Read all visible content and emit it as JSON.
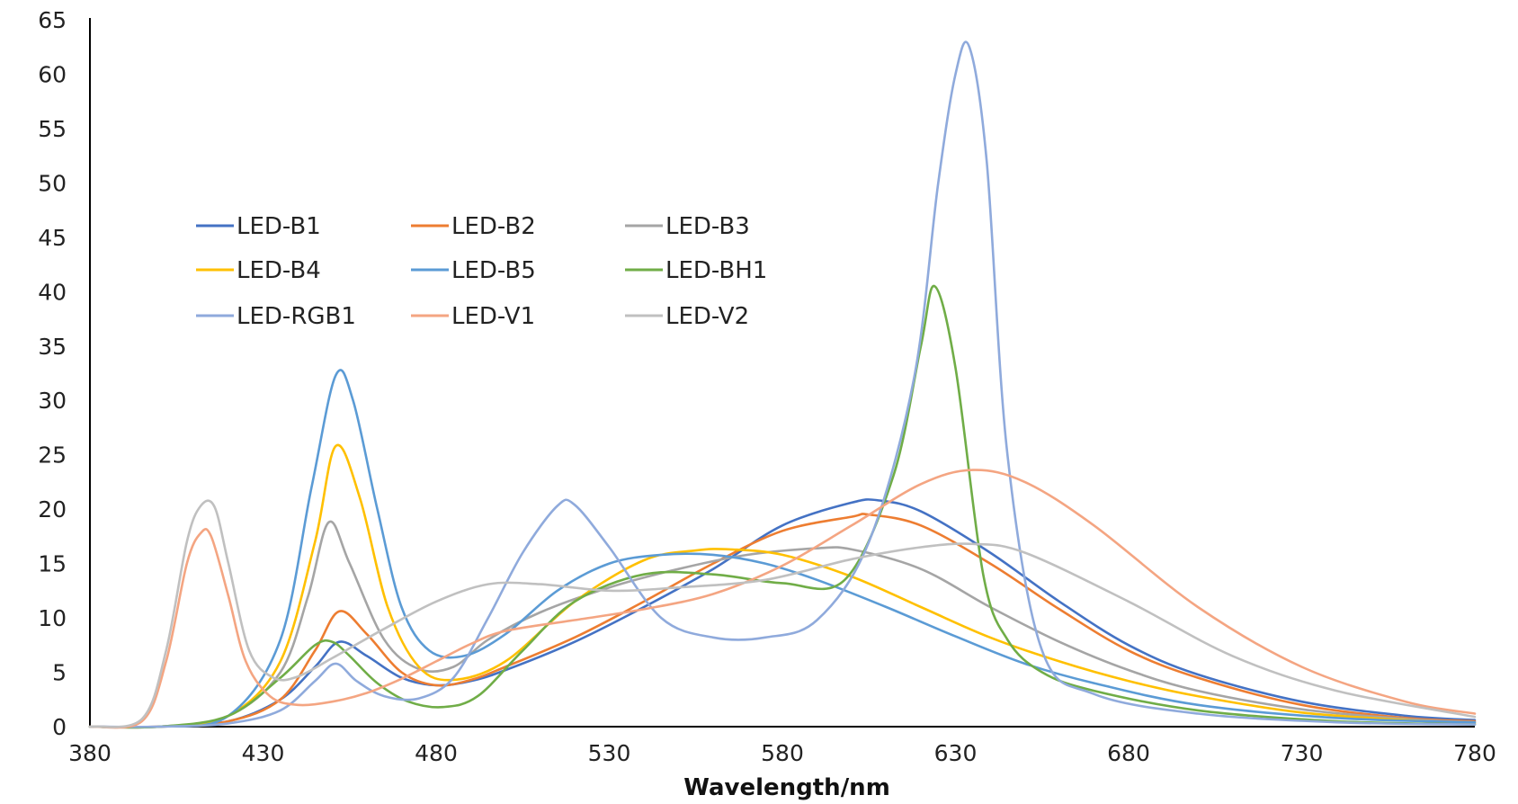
{
  "chart_data": {
    "type": "line",
    "title": "",
    "xlabel": "Wavelength/nm",
    "ylabel": "",
    "xlim": [
      380,
      780
    ],
    "ylim": [
      0,
      65
    ],
    "xticks": [
      380,
      430,
      480,
      530,
      580,
      630,
      680,
      730,
      780
    ],
    "yticks": [
      0,
      5,
      10,
      15,
      20,
      25,
      30,
      35,
      40,
      45,
      50,
      55,
      60,
      65
    ],
    "grid": false,
    "legend_position": "upper-left",
    "series": [
      {
        "name": "LED-B1",
        "color": "#4472C4",
        "x": [
          380,
          400,
          420,
          435,
          445,
          452,
          460,
          470,
          480,
          490,
          500,
          520,
          540,
          560,
          580,
          600,
          608,
          620,
          640,
          660,
          680,
          700,
          730,
          760,
          780
        ],
        "y": [
          0,
          0,
          0.5,
          2.5,
          5.5,
          7.8,
          6.5,
          4.5,
          3.8,
          4.2,
          5.2,
          7.8,
          11,
          14.5,
          18.5,
          20.6,
          20.8,
          19.8,
          16,
          11.5,
          7.5,
          4.8,
          2.3,
          1,
          0.6
        ]
      },
      {
        "name": "LED-B2",
        "color": "#ED7D31",
        "x": [
          380,
          400,
          420,
          435,
          445,
          452,
          460,
          470,
          480,
          490,
          500,
          520,
          540,
          560,
          580,
          600,
          605,
          620,
          640,
          660,
          680,
          700,
          730,
          760,
          780
        ],
        "y": [
          0,
          0,
          0.5,
          2.5,
          7,
          10.6,
          8.5,
          5,
          3.8,
          4.3,
          5.5,
          8.2,
          11.5,
          15,
          18,
          19.3,
          19.5,
          18.5,
          15,
          10.8,
          7,
          4.5,
          2,
          0.8,
          0.5
        ]
      },
      {
        "name": "LED-B3",
        "color": "#A5A5A5",
        "x": [
          380,
          400,
          420,
          435,
          443,
          449,
          455,
          465,
          475,
          485,
          495,
          510,
          530,
          550,
          570,
          590,
          600,
          620,
          640,
          660,
          680,
          700,
          730,
          760,
          780
        ],
        "y": [
          0,
          0,
          1,
          5,
          12,
          18.8,
          15,
          8,
          5.3,
          5.5,
          8,
          10.5,
          12.8,
          14.5,
          15.8,
          16.4,
          16.3,
          14.5,
          11,
          7.8,
          5.2,
          3.3,
          1.6,
          0.7,
          0.4
        ]
      },
      {
        "name": "LED-B4",
        "color": "#FFC000",
        "x": [
          380,
          400,
          420,
          435,
          445,
          451,
          458,
          466,
          475,
          485,
          500,
          520,
          540,
          555,
          565,
          580,
          600,
          620,
          640,
          660,
          680,
          700,
          730,
          760,
          780
        ],
        "y": [
          0,
          0,
          1,
          6,
          17,
          25.8,
          21,
          11,
          5.5,
          4.3,
          6,
          11.5,
          15.3,
          16.2,
          16.3,
          15.8,
          13.8,
          11,
          8.2,
          6,
          4.2,
          2.8,
          1.3,
          0.6,
          0.3
        ]
      },
      {
        "name": "LED-B5",
        "color": "#5B9BD5",
        "x": [
          380,
          400,
          420,
          435,
          444,
          451,
          456,
          463,
          470,
          478,
          488,
          500,
          515,
          530,
          545,
          560,
          575,
          590,
          610,
          630,
          650,
          670,
          700,
          740,
          780
        ],
        "y": [
          0,
          0,
          1,
          8,
          22,
          32.3,
          30,
          20,
          11,
          7,
          6.5,
          8.5,
          12.5,
          15,
          15.8,
          15.8,
          15,
          13.5,
          11,
          8.3,
          5.8,
          4,
          2,
          0.8,
          0.4
        ]
      },
      {
        "name": "LED-BH1",
        "color": "#70AD47",
        "x": [
          380,
          400,
          420,
          435,
          445,
          450,
          455,
          463,
          472,
          482,
          492,
          505,
          520,
          540,
          560,
          580,
          598,
          612,
          620,
          624,
          630,
          638,
          645,
          655,
          670,
          700,
          740,
          780
        ],
        "y": [
          0,
          0,
          1,
          4.5,
          7.5,
          7.8,
          6.5,
          4,
          2.3,
          1.8,
          2.8,
          7,
          11.5,
          14,
          14,
          13.2,
          13.5,
          23,
          35,
          40.5,
          33,
          14,
          8,
          5,
          3.3,
          1.5,
          0.5,
          0.2
        ]
      },
      {
        "name": "LED-RGB1",
        "color": "#8FAADC",
        "x": [
          380,
          400,
          420,
          435,
          445,
          451,
          457,
          465,
          475,
          485,
          495,
          505,
          515,
          520,
          530,
          545,
          560,
          575,
          590,
          605,
          618,
          625,
          630,
          634,
          639,
          645,
          655,
          670,
          700,
          740,
          780
        ],
        "y": [
          0,
          0,
          0.3,
          1.5,
          4.2,
          5.8,
          4.2,
          2.8,
          2.6,
          4.5,
          10,
          16,
          20.3,
          20.4,
          16.5,
          10,
          8.2,
          8.2,
          9.8,
          17,
          32,
          50,
          60,
          62.5,
          52,
          25,
          7,
          3,
          1.2,
          0.4,
          0.2
        ]
      },
      {
        "name": "LED-V1",
        "color": "#F4A582",
        "x": [
          380,
          395,
          402,
          408,
          412,
          415,
          420,
          425,
          432,
          440,
          450,
          460,
          470,
          480,
          490,
          500,
          520,
          540,
          560,
          580,
          600,
          620,
          635,
          650,
          670,
          700,
          730,
          760,
          780
        ],
        "y": [
          0,
          0.5,
          6,
          15,
          17.8,
          17.5,
          12,
          6,
          2.8,
          2,
          2.3,
          3.1,
          4.4,
          6,
          7.6,
          8.8,
          9.8,
          10.8,
          12.2,
          14.8,
          18.5,
          22.3,
          23.6,
          22.5,
          18.5,
          11,
          5.5,
          2.3,
          1.2
        ]
      },
      {
        "name": "LED-V2",
        "color": "#C0C0C0",
        "x": [
          380,
          395,
          402,
          408,
          412,
          416,
          420,
          426,
          433,
          440,
          450,
          465,
          480,
          495,
          510,
          530,
          550,
          575,
          600,
          620,
          635,
          650,
          680,
          710,
          740,
          780
        ],
        "y": [
          0,
          0.7,
          7,
          17,
          20.3,
          20.2,
          15,
          7,
          4.5,
          4.6,
          6.3,
          9,
          11.5,
          13.1,
          13.1,
          12.5,
          12.8,
          13.5,
          15.4,
          16.5,
          16.8,
          16,
          11.5,
          6.5,
          3.3,
          0.9
        ]
      }
    ]
  }
}
